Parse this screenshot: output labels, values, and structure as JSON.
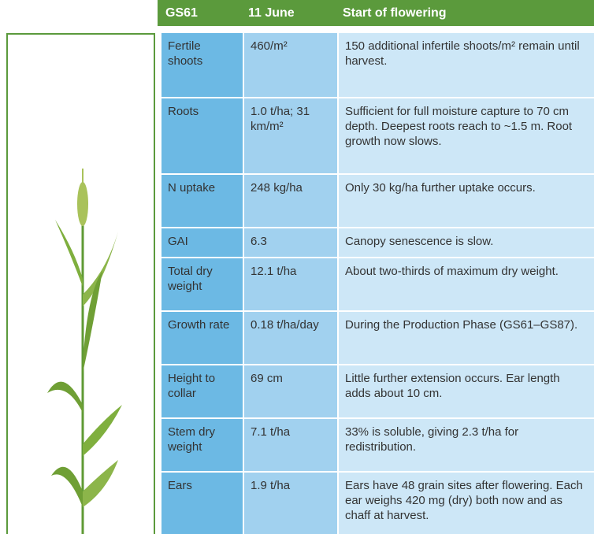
{
  "header": {
    "stage": "GS61",
    "date": "11 June",
    "title": "Start of flowering"
  },
  "table": {
    "rows": [
      [
        "Fertile shoots",
        "460/m²",
        "150 additional infertile shoots/m² remain until harvest."
      ],
      [
        "Roots",
        "1.0 t/ha; 31 km/m²",
        "Sufficient for full moisture capture to 70 cm depth. Deepest roots reach to ~1.5 m. Root growth now slows."
      ],
      [
        "N uptake",
        "248 kg/ha",
        "Only 30 kg/ha further uptake occurs."
      ],
      [
        "GAI",
        "6.3",
        "Canopy senescence is slow."
      ],
      [
        "Total dry weight",
        "12.1 t/ha",
        "About two-thirds of maximum dry weight."
      ],
      [
        "Growth rate",
        "0.18 t/ha/day",
        "During the Production Phase (GS61–GS87)."
      ],
      [
        "Height to collar",
        "69 cm",
        "Little further extension occurs. Ear length adds about 10 cm."
      ],
      [
        "Stem dry weight",
        "7.1 t/ha",
        "33% is soluble, giving 2.3 t/ha for redistribution."
      ],
      [
        "Ears",
        "1.9 t/ha",
        "Ears have 48 grain sites after flowering. Each ear weighs 420 mg (dry) both now and as chaff at harvest."
      ]
    ]
  }
}
